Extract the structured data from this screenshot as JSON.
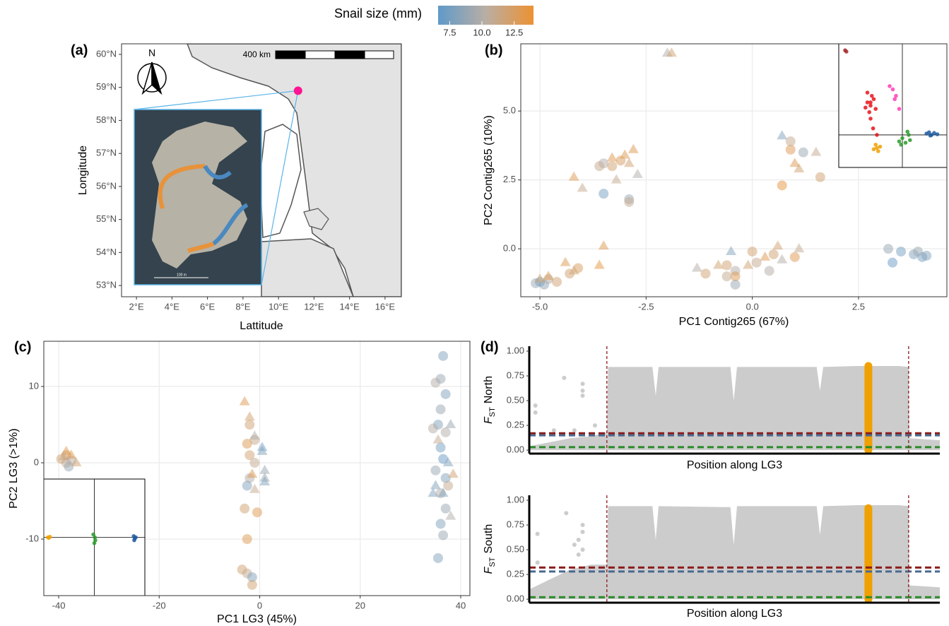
{
  "legend": {
    "title": "Snail size (mm)",
    "clim": [
      6.6,
      14.0
    ],
    "ticks": [
      7.5,
      {
        "value": 10,
        "label": "10.0"
      },
      12.5
    ],
    "colors": [
      "#5f9ac9",
      "#b9aea4",
      "#ec9233"
    ]
  },
  "chart_data": [
    {
      "type": "map",
      "label": "(a)",
      "xlabel": "Lattitude",
      "ylabel": "Longitude",
      "xlim": [
        1.16,
        16.92
      ],
      "ylim": [
        52.66,
        60.32
      ],
      "xticks": [
        {
          "value": 2,
          "label": "2°E"
        },
        {
          "value": 4,
          "label": "4°E"
        },
        {
          "value": 6,
          "label": "6°E"
        },
        {
          "value": 8,
          "label": "8°E"
        },
        {
          "value": 10,
          "label": "10°E"
        },
        {
          "value": 12,
          "label": "12°E"
        },
        {
          "value": 14,
          "label": "14°E"
        },
        {
          "value": 16,
          "label": "16°E"
        }
      ],
      "yticks": [
        {
          "value": 53,
          "label": "53°N"
        },
        {
          "value": 54,
          "label": "54°N"
        },
        {
          "value": 55,
          "label": "55°N"
        },
        {
          "value": 56,
          "label": "56°N"
        },
        {
          "value": 57,
          "label": "57°N"
        },
        {
          "value": 58,
          "label": "58°N"
        },
        {
          "value": 59,
          "label": "59°N"
        },
        {
          "value": 60,
          "label": "60°N"
        }
      ],
      "point": {
        "x": 11.1,
        "y": 58.9,
        "color": "#ff1493"
      },
      "scale_label": "400 km",
      "north_label": "N",
      "inset_scale_label": "100 m"
    },
    {
      "type": "scatter",
      "label": "(b)",
      "xlabel": "PC1 Contig265 (67%)",
      "ylabel": "PC2 Contig265 (10%)",
      "xlim": [
        -5.45,
        4.58
      ],
      "ylim": [
        -1.74,
        7.44
      ],
      "xticks": [
        {
          "value": -5,
          "label": "-5.0"
        },
        -2.5,
        {
          "value": 0,
          "label": "0.0"
        },
        2.5
      ],
      "yticks": [
        {
          "value": 0,
          "label": "0.0"
        },
        2.5,
        {
          "value": 5,
          "label": "5.0"
        }
      ],
      "grid": true,
      "series": [
        {
          "marker": "circle",
          "x": [
            -5.1,
            -4.9,
            -4.8,
            -4.6,
            -4.3,
            -4.1,
            -5.0,
            -3.5,
            -3.3,
            -3.5,
            -2.9,
            -2.9,
            -3.1,
            -3.6,
            -1.1,
            -0.6,
            -0.4,
            -0.4,
            -0.4,
            0.0,
            0.1,
            0.4,
            0.5,
            1.0,
            -0.6,
            0.9,
            1.2,
            0.7,
            1.6,
            0.9,
            3.2,
            3.5,
            3.3,
            3.8,
            4.0,
            3.9,
            4.1
          ],
          "values": [
            -1.25,
            -1.3,
            -1.1,
            -1.2,
            -0.9,
            -0.7,
            -1.2,
            3.1,
            3.0,
            2.0,
            1.8,
            1.7,
            3.2,
            3.0,
            -0.9,
            -0.6,
            -0.8,
            -1.0,
            -1.3,
            -0.1,
            -0.5,
            -0.8,
            -0.2,
            -0.3,
            -1.0,
            3.6,
            3.5,
            2.3,
            2.6,
            3.9,
            0.0,
            -0.1,
            -0.5,
            -0.2,
            -0.3,
            -0.1,
            -0.25
          ],
          "sizes": [
            9,
            8.5,
            10,
            12,
            12,
            12.5,
            7.5,
            10,
            12,
            7.5,
            9,
            11,
            12.5,
            11,
            12,
            12,
            10,
            13,
            9,
            12,
            11,
            10,
            12,
            13,
            11,
            13,
            9,
            13.5,
            12,
            11,
            9,
            7.5,
            7,
            8,
            7.5,
            9,
            8
          ]
        },
        {
          "marker": "triangle",
          "x": [
            -2.0,
            -1.9,
            -5.0,
            -4.8,
            -4.4,
            -4.2,
            -3.6,
            -3.5,
            -4.2,
            -4.0,
            -3.3,
            -3.0,
            -2.8,
            -2.9,
            -2.7,
            -3.2,
            -0.8,
            -0.5,
            -0.1,
            0.3,
            0.6,
            0.7,
            1.1,
            0.7,
            1.0,
            1.5,
            1.1,
            -1.3
          ],
          "values": [
            7.1,
            7.1,
            -1.1,
            -1.0,
            -0.5,
            -0.8,
            -0.6,
            0.1,
            2.6,
            2.2,
            3.3,
            3.4,
            3.6,
            3.1,
            2.7,
            2.5,
            -0.6,
            -0.1,
            -0.6,
            -0.3,
            0.1,
            -0.4,
            0.0,
            4.1,
            3.1,
            3.5,
            2.9,
            -0.7
          ],
          "sizes": [
            10,
            12,
            12,
            13,
            13,
            12,
            13.5,
            13,
            13,
            11,
            13,
            13,
            13,
            12,
            10,
            11,
            12,
            8,
            12,
            13,
            12,
            10,
            11,
            8,
            13,
            11,
            12,
            10
          ]
        }
      ],
      "inset": {
        "xlim": [
          -1,
          0.7
        ],
        "ylim": [
          -0.5,
          1.4
        ],
        "crosshair": {
          "x": 0,
          "y": 0
        },
        "series": [
          {
            "color": "#a52a2a",
            "x": [
              -0.9,
              -0.88
            ],
            "values": [
              1.3,
              1.28
            ]
          },
          {
            "color": "#e8141c",
            "x": [
              -0.55,
              -0.5,
              -0.45,
              -0.52,
              -0.48,
              -0.58,
              -0.42,
              -0.5,
              -0.46,
              -0.4,
              -0.55,
              -0.5
            ],
            "values": [
              0.5,
              0.45,
              0.55,
              0.35,
              0.6,
              0.42,
              0.4,
              0.25,
              0.1,
              0.0,
              0.65,
              0.5
            ]
          },
          {
            "color": "#ff3eb5",
            "x": [
              -0.2,
              -0.15,
              -0.1,
              -0.12,
              -0.05
            ],
            "values": [
              0.75,
              0.7,
              0.6,
              0.55,
              0.4
            ]
          },
          {
            "color": "#f0a000",
            "x": [
              -0.45,
              -0.4,
              -0.35,
              -0.38,
              -0.42
            ],
            "values": [
              -0.22,
              -0.2,
              -0.18,
              -0.25,
              -0.15
            ]
          },
          {
            "color": "#2a9a2a",
            "x": [
              -0.05,
              0.0,
              0.05,
              0.1,
              -0.02,
              0.08,
              0.12
            ],
            "values": [
              -0.1,
              -0.05,
              -0.12,
              0.0,
              -0.15,
              0.05,
              -0.08
            ]
          },
          {
            "color": "#1f5aa0",
            "x": [
              0.38,
              0.42,
              0.46,
              0.5,
              0.55,
              0.44
            ],
            "values": [
              0.02,
              0.04,
              0.0,
              0.03,
              0.01,
              -0.01
            ]
          }
        ]
      }
    },
    {
      "type": "scatter",
      "label": "(c)",
      "xlabel": "PC1 LG3 (45%)",
      "ylabel": "PC2 LG3 (>1%)",
      "xlim": [
        -42.96,
        41.83
      ],
      "ylim": [
        -17.41,
        15.93
      ],
      "xticks": [
        -40,
        -20,
        0,
        20,
        40
      ],
      "yticks": [
        -10,
        0,
        10
      ],
      "grid": true,
      "series": [
        {
          "marker": "circle",
          "x": [
            -39.5,
            -38.5,
            -38,
            -38.5,
            -37.5,
            -2,
            -1,
            -2.5,
            -2,
            -1,
            -2,
            -3,
            -0.5,
            -2.5,
            -3.5,
            -2.5,
            -1.5,
            -1.5,
            -2.5,
            36.5,
            36,
            35,
            37,
            36,
            35.5,
            37,
            36,
            36.5,
            35,
            37,
            36,
            37,
            36,
            36.5,
            35.5,
            34.5,
            37.5
          ],
          "values": [
            0.5,
            0,
            -0.5,
            1,
            0.3,
            5,
            3,
            2.5,
            1,
            0,
            -2,
            -6,
            -6.5,
            -10,
            -14,
            -14.5,
            -15,
            -16,
            -3,
            14,
            11,
            10.5,
            9,
            7,
            5,
            4,
            2,
            0.5,
            -1,
            -2,
            -4,
            -6,
            -8,
            -9.5,
            -12.5,
            4.5,
            -3
          ],
          "sizes": [
            12,
            11,
            9,
            12.5,
            10,
            12,
            11,
            13,
            12,
            11,
            10,
            12,
            13,
            13,
            12,
            11,
            8,
            12,
            8,
            8,
            9,
            10,
            8,
            9,
            8,
            10,
            7.5,
            7,
            9,
            8,
            10,
            9,
            8,
            9,
            8,
            10,
            11
          ]
        },
        {
          "marker": "triangle",
          "x": [
            -38.5,
            -37.5,
            -36.5,
            -39,
            -3,
            -2,
            -1,
            0.5,
            1,
            -1.5,
            1,
            0.5,
            -1,
            1,
            35,
            36.5,
            38,
            37.5,
            38,
            35.5,
            34.5,
            38.5
          ],
          "values": [
            1.5,
            1,
            0,
            0.8,
            8,
            6,
            3.5,
            1.5,
            -1,
            -1.5,
            -2,
            2,
            -3.5,
            -2.5,
            -3,
            -4,
            5,
            0,
            -7,
            3,
            -4,
            -1.5
          ],
          "sizes": [
            13,
            13,
            12,
            11,
            13,
            12,
            10,
            8,
            9,
            13,
            9,
            7.5,
            11,
            8,
            8,
            8,
            9,
            8,
            10,
            11,
            8,
            12
          ]
        }
      ],
      "inset": {
        "xlim": [
          -1,
          1
        ],
        "ylim": [
          -1,
          1
        ],
        "crosshair": {
          "x": 0,
          "y": 0
        },
        "series": [
          {
            "color": "#f0a000",
            "x": [
              -0.92,
              -0.88,
              -0.9
            ],
            "values": [
              0,
              0.01,
              -0.01
            ]
          },
          {
            "color": "#2a9a2a",
            "x": [
              -0.02,
              0.02,
              0,
              0.01
            ],
            "values": [
              0.05,
              -0.05,
              -0.1,
              0
            ]
          },
          {
            "color": "#1f5aa0",
            "x": [
              0.78,
              0.8,
              0.82,
              0.79
            ],
            "values": [
              0.02,
              -0.02,
              0,
              -0.05
            ]
          }
        ]
      }
    },
    {
      "type": "fst",
      "label": "(d)",
      "ylabel": "F",
      "ylabel_sub": "ST",
      "ylabel_suffix": "North",
      "xlabel": "Position along LG3",
      "xlim": [
        0,
        100
      ],
      "ylim": [
        -0.035,
        1.05
      ],
      "yticks": [
        {
          "value": 0,
          "label": "0.00"
        },
        0.25,
        {
          "value": 0.5,
          "label": "0.50"
        },
        0.75,
        {
          "value": 1,
          "label": "1.00"
        }
      ],
      "cloud": {
        "color": "#cccccc",
        "x": [
          0,
          5,
          10,
          15,
          18.9,
          19.2,
          30,
          30.8,
          31.5,
          49,
          49.8,
          50.6,
          70,
          70.8,
          71.6,
          80,
          90,
          92.4,
          92.6,
          100
        ],
        "values": [
          0.04,
          0.08,
          0.12,
          0.14,
          0.18,
          0.84,
          0.84,
          0.55,
          0.84,
          0.84,
          0.5,
          0.84,
          0.84,
          0.6,
          0.84,
          0.85,
          0.85,
          0.84,
          0.12,
          0.1
        ]
      },
      "points": {
        "x": [
          1.5,
          1.5,
          8.5,
          13,
          13,
          13,
          16,
          6,
          11
        ],
        "values": [
          0.45,
          0.38,
          0.73,
          0.67,
          0.6,
          0.55,
          0.25,
          0.2,
          0.2
        ]
      },
      "highlight": {
        "x": 82.6,
        "values": [
          0,
          0.85
        ],
        "color": "#f0a000"
      },
      "hlines": [
        {
          "value": 0.17,
          "color": "#8b1a1a"
        },
        {
          "value": 0.15,
          "color": "#4a6a90"
        },
        {
          "value": 0.03,
          "color": "#2a8a2a"
        }
      ],
      "vlines": {
        "values": [
          18.9,
          92.4
        ],
        "color": "#8b1a1a"
      }
    },
    {
      "type": "fst",
      "ylabel": "F",
      "ylabel_sub": "ST",
      "ylabel_suffix": "South",
      "xlabel": "Position along LG3",
      "xlim": [
        0,
        100
      ],
      "ylim": [
        -0.035,
        1.05
      ],
      "yticks": [
        {
          "value": 0,
          "label": "0.00"
        },
        0.25,
        {
          "value": 0.5,
          "label": "0.50"
        },
        0.75,
        {
          "value": 1,
          "label": "1.00"
        }
      ],
      "cloud": {
        "color": "#cccccc",
        "x": [
          0,
          5,
          10,
          15,
          18.9,
          19.2,
          30,
          30.8,
          31.5,
          49,
          49.8,
          50.6,
          70,
          70.8,
          71.6,
          80,
          90,
          92.4,
          92.6,
          100
        ],
        "values": [
          0.1,
          0.2,
          0.3,
          0.35,
          0.35,
          0.94,
          0.94,
          0.6,
          0.94,
          0.93,
          0.55,
          0.94,
          0.94,
          0.65,
          0.94,
          0.95,
          0.95,
          0.94,
          0.14,
          0.12
        ]
      },
      "points": {
        "x": [
          2,
          9,
          13,
          13,
          12,
          11,
          12,
          13,
          2
        ],
        "values": [
          0.66,
          0.87,
          0.75,
          0.68,
          0.6,
          0.55,
          0.45,
          0.5,
          0.37
        ]
      },
      "highlight": {
        "x": 82.6,
        "values": [
          0,
          0.92
        ],
        "color": "#f0a000"
      },
      "hlines": [
        {
          "value": 0.32,
          "color": "#8b1a1a"
        },
        {
          "value": 0.28,
          "color": "#4a6a90"
        },
        {
          "value": 0.02,
          "color": "#2a8a2a"
        }
      ],
      "vlines": {
        "values": [
          18.9,
          92.4
        ],
        "color": "#8b1a1a"
      }
    }
  ]
}
